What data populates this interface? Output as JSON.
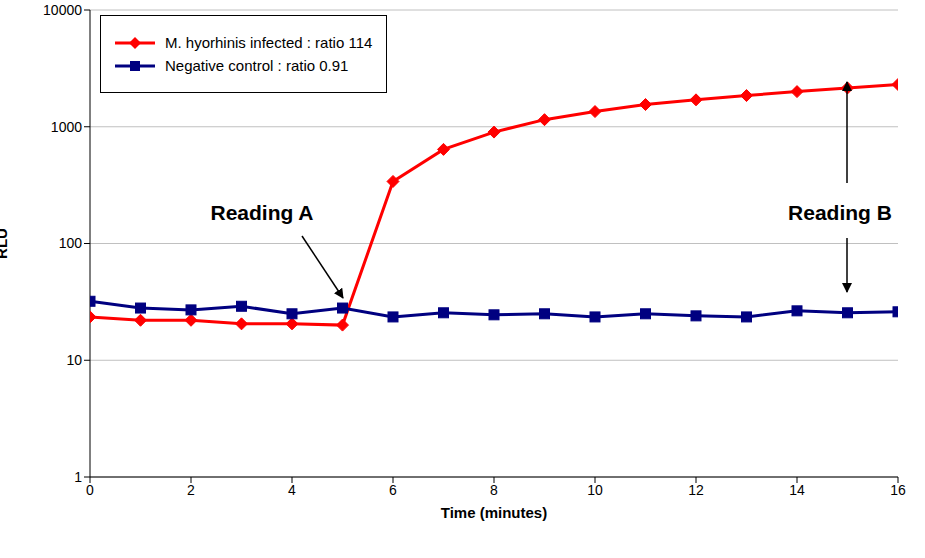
{
  "chart_data": {
    "type": "line",
    "xlabel": "Time (minutes)",
    "ylabel": "RLU",
    "x": [
      0,
      1,
      2,
      3,
      4,
      5,
      6,
      7,
      8,
      9,
      10,
      11,
      12,
      13,
      14,
      15,
      16
    ],
    "series": [
      {
        "name": "M. hyorhinis infected : ratio 114",
        "color": "#ff0000",
        "marker": "diamond",
        "values": [
          23.5,
          22,
          22,
          20.5,
          20.5,
          20,
          340,
          640,
          900,
          1150,
          1350,
          1550,
          1700,
          1850,
          2000,
          2150,
          2300
        ]
      },
      {
        "name": "Negative control : ratio 0.91",
        "color": "#000080",
        "marker": "square",
        "values": [
          32,
          28,
          27,
          29,
          25,
          28,
          23.5,
          25.5,
          24.5,
          25,
          23.5,
          25,
          24,
          23.5,
          26.5,
          25.5,
          26
        ]
      }
    ],
    "xlim": [
      0,
      16
    ],
    "xticks": [
      0,
      2,
      4,
      6,
      8,
      10,
      12,
      14,
      16
    ],
    "ylim": [
      1,
      10000
    ],
    "yticks": [
      1,
      10,
      100,
      1000,
      10000
    ],
    "log": "y",
    "grid": true,
    "legend": "upper left",
    "annotations": [
      "Reading A",
      "Reading B"
    ]
  }
}
